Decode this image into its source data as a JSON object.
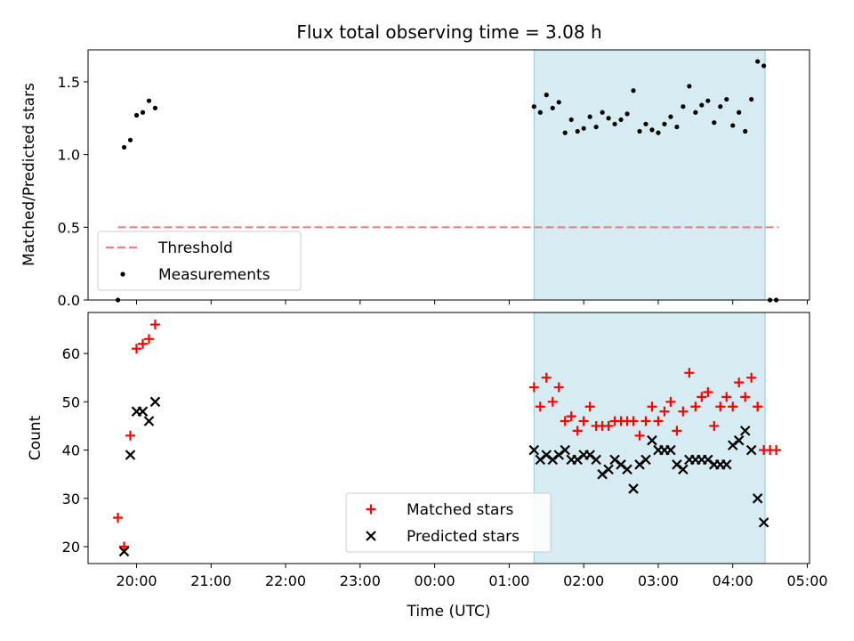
{
  "title": "Flux total observing time = 3.08 h",
  "colors": {
    "threshold": "#f08080",
    "measurements": "#000000",
    "matched": "#ff0000",
    "predicted": "#000000",
    "highlight": "#add8e6"
  },
  "chart_data": [
    {
      "type": "scatter",
      "panel": "top",
      "ylabel": "Matched/Predicted stars",
      "xlabel": "",
      "ylim": [
        0,
        1.72
      ],
      "yticks": [
        "0.0",
        "0.5",
        "1.0",
        "1.5"
      ],
      "highlight_span": [
        "01:20",
        "04:26"
      ],
      "legend": {
        "placement": "lower-left",
        "entries": [
          "Threshold",
          "Measurements"
        ]
      },
      "series": [
        {
          "name": "Threshold",
          "kind": "dashed-line",
          "x": [
            "19:45",
            "04:37"
          ],
          "y": [
            0.5,
            0.5
          ]
        },
        {
          "name": "Measurements",
          "kind": "dot",
          "x": [
            "19:45",
            "19:50",
            "19:55",
            "20:00",
            "20:05",
            "20:10",
            "20:15",
            "01:20",
            "01:25",
            "01:30",
            "01:35",
            "01:40",
            "01:45",
            "01:50",
            "01:55",
            "02:00",
            "02:05",
            "02:10",
            "02:15",
            "02:20",
            "02:25",
            "02:30",
            "02:35",
            "02:40",
            "02:45",
            "02:50",
            "02:55",
            "03:00",
            "03:05",
            "03:10",
            "03:15",
            "03:20",
            "03:25",
            "03:30",
            "03:35",
            "03:40",
            "03:45",
            "03:50",
            "03:55",
            "04:00",
            "04:05",
            "04:10",
            "04:15",
            "04:20",
            "04:25",
            "04:30",
            "04:35"
          ],
          "y": [
            0.0,
            1.05,
            1.1,
            1.27,
            1.29,
            1.37,
            1.32,
            1.33,
            1.29,
            1.41,
            1.32,
            1.36,
            1.15,
            1.24,
            1.16,
            1.18,
            1.26,
            1.19,
            1.29,
            1.25,
            1.21,
            1.24,
            1.28,
            1.44,
            1.16,
            1.21,
            1.17,
            1.15,
            1.21,
            1.26,
            1.19,
            1.33,
            1.47,
            1.29,
            1.34,
            1.37,
            1.22,
            1.33,
            1.38,
            1.2,
            1.29,
            1.16,
            1.38,
            1.64,
            1.61,
            0.0,
            0.0
          ]
        }
      ]
    },
    {
      "type": "scatter",
      "panel": "bottom",
      "ylabel": "Count",
      "xlabel": "Time (UTC)",
      "ylim": [
        16.5,
        68.5
      ],
      "yticks": [
        "20",
        "30",
        "40",
        "50",
        "60"
      ],
      "xticks": [
        "20:00",
        "21:00",
        "22:00",
        "23:00",
        "00:00",
        "01:00",
        "02:00",
        "03:00",
        "04:00",
        "05:00"
      ],
      "highlight_span": [
        "01:20",
        "04:26"
      ],
      "legend": {
        "placement": "lower-center",
        "entries": [
          "Matched stars",
          "Predicted stars"
        ]
      },
      "series": [
        {
          "name": "Matched stars",
          "kind": "plus",
          "x": [
            "19:45",
            "19:50",
            "19:55",
            "20:00",
            "20:05",
            "20:10",
            "20:15",
            "01:20",
            "01:25",
            "01:30",
            "01:35",
            "01:40",
            "01:45",
            "01:50",
            "01:55",
            "02:00",
            "02:05",
            "02:10",
            "02:15",
            "02:20",
            "02:25",
            "02:30",
            "02:35",
            "02:40",
            "02:45",
            "02:50",
            "02:55",
            "03:00",
            "03:05",
            "03:10",
            "03:15",
            "03:20",
            "03:25",
            "03:30",
            "03:35",
            "03:40",
            "03:45",
            "03:50",
            "03:55",
            "04:00",
            "04:05",
            "04:10",
            "04:15",
            "04:20",
            "04:25",
            "04:30",
            "04:35"
          ],
          "y": [
            26,
            20,
            43,
            61,
            62,
            63,
            66,
            53,
            49,
            55,
            50,
            53,
            46,
            47,
            44,
            46,
            49,
            45,
            45,
            45,
            46,
            46,
            46,
            46,
            43,
            46,
            49,
            46,
            48,
            50,
            44,
            48,
            56,
            49,
            51,
            52,
            45,
            49,
            51,
            49,
            54,
            51,
            55,
            49,
            40,
            40,
            40
          ]
        },
        {
          "name": "Predicted stars",
          "kind": "cross",
          "x": [
            "19:50",
            "19:55",
            "20:00",
            "20:05",
            "20:10",
            "20:15",
            "01:20",
            "01:25",
            "01:30",
            "01:35",
            "01:40",
            "01:45",
            "01:50",
            "01:55",
            "02:00",
            "02:05",
            "02:10",
            "02:15",
            "02:20",
            "02:25",
            "02:30",
            "02:35",
            "02:40",
            "02:45",
            "02:50",
            "02:55",
            "03:00",
            "03:05",
            "03:10",
            "03:15",
            "03:20",
            "03:25",
            "03:30",
            "03:35",
            "03:40",
            "03:45",
            "03:50",
            "03:55",
            "04:00",
            "04:05",
            "04:10",
            "04:15",
            "04:20",
            "04:25"
          ],
          "y": [
            19,
            39,
            48,
            48,
            46,
            50,
            40,
            38,
            39,
            38,
            39,
            40,
            38,
            38,
            39,
            39,
            38,
            35,
            36,
            38,
            37,
            36,
            32,
            37,
            38,
            42,
            40,
            40,
            40,
            37,
            36,
            38,
            38,
            38,
            38,
            37,
            37,
            37,
            41,
            42,
            44,
            40,
            30,
            25
          ]
        }
      ]
    }
  ]
}
